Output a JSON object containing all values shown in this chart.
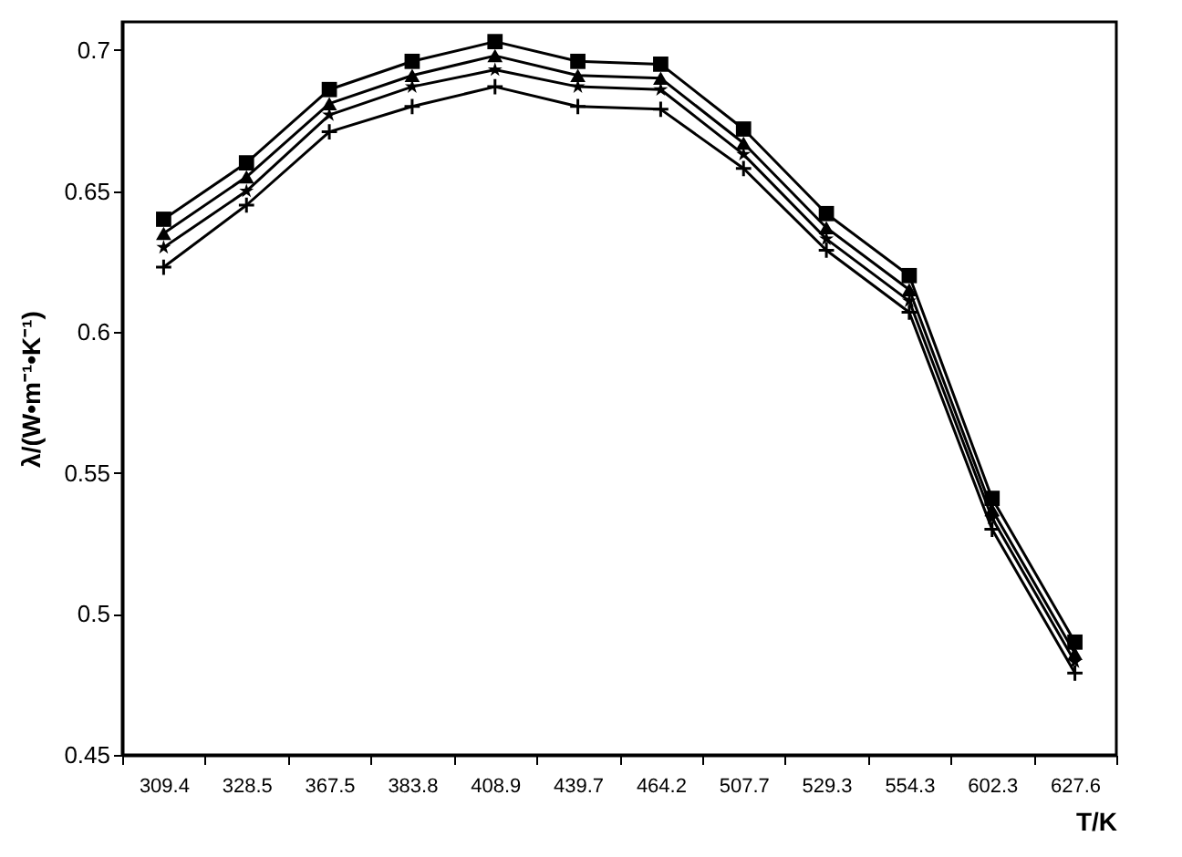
{
  "chart_data": {
    "type": "line",
    "xlabel": "T/K",
    "ylabel": "λ/(W•m⁻¹•K⁻¹)",
    "categories": [
      "309.4",
      "328.5",
      "367.5",
      "383.8",
      "408.9",
      "439.7",
      "464.2",
      "507.7",
      "529.3",
      "554.3",
      "602.3",
      "627.6"
    ],
    "series": [
      {
        "color": "#000000",
        "marker": "square",
        "values": [
          0.64,
          0.66,
          0.686,
          0.696,
          0.703,
          0.696,
          0.695,
          0.672,
          0.642,
          0.62,
          0.541,
          0.49
        ]
      },
      {
        "color": "#000000",
        "marker": "triangle",
        "values": [
          0.635,
          0.655,
          0.681,
          0.691,
          0.698,
          0.691,
          0.69,
          0.667,
          0.637,
          0.615,
          0.537,
          0.486
        ]
      },
      {
        "color": "#000000",
        "marker": "star",
        "values": [
          0.63,
          0.65,
          0.677,
          0.687,
          0.693,
          0.687,
          0.686,
          0.663,
          0.633,
          0.611,
          0.534,
          0.483
        ]
      },
      {
        "color": "#000000",
        "marker": "cross",
        "values": [
          0.623,
          0.645,
          0.671,
          0.68,
          0.687,
          0.68,
          0.679,
          0.658,
          0.629,
          0.607,
          0.53,
          0.479
        ]
      }
    ],
    "ylim": [
      0.45,
      0.71
    ],
    "yticks": [
      0.45,
      0.5,
      0.55,
      0.6,
      0.65,
      0.7
    ],
    "grid": false,
    "line_style": "solid"
  }
}
